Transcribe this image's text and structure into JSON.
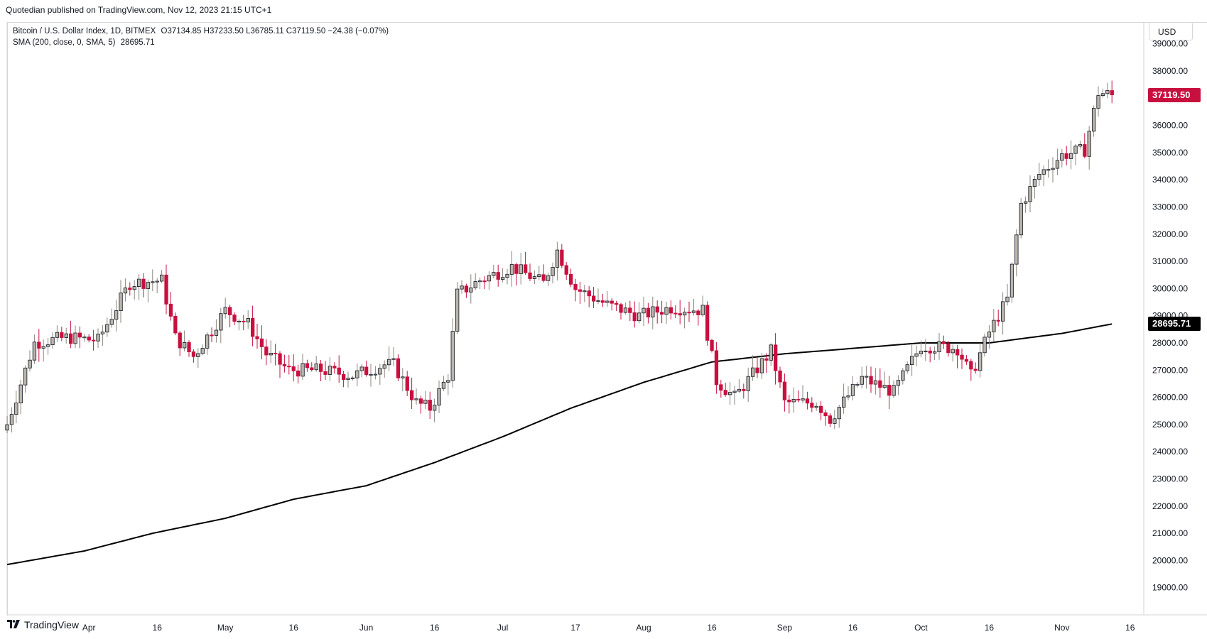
{
  "header": {
    "published_text": "Quotedian published on TradingView.com, Nov 12, 2023 21:15 UTC+1"
  },
  "legend": {
    "symbol": "Bitcoin / U.S. Dollar Index, 1D, BITMEX",
    "ohlc": "O37134.85 H37233.50 L36785.11 C37119.50 −24.38 (−0.07%)",
    "indicator": "SMA (200, close, 0, SMA, 5)",
    "indicator_value": "28695.71"
  },
  "currency_button": "USD",
  "price_labels": {
    "last_price": "37119.50",
    "sma_price": "28695.71"
  },
  "brand": "TradingView",
  "colors": {
    "up": "#b9b5ac",
    "down": "#c8103f",
    "outline": "#131722",
    "sma": "#000000",
    "last_price_bg": "#c8103f",
    "sma_label_bg": "#000000"
  },
  "chart_data": {
    "type": "candlestick",
    "title": "Bitcoin / U.S. Dollar Index, 1D, BITMEX",
    "ylim": [
      18000,
      39800
    ],
    "y_ticks": [
      19000,
      20000,
      21000,
      22000,
      23000,
      24000,
      25000,
      26000,
      27000,
      28000,
      29000,
      30000,
      31000,
      32000,
      33000,
      34000,
      35000,
      36000,
      37000,
      38000,
      39000
    ],
    "y_tick_labels": [
      "19000.00",
      "20000.00",
      "21000.00",
      "22000.00",
      "23000.00",
      "24000.00",
      "25000.00",
      "26000.00",
      "27000.00",
      "28000.00",
      "29000.00",
      "30000.00",
      "31000.00",
      "32000.00",
      "33000.00",
      "34000.00",
      "35000.00",
      "36000.00",
      "37000.00",
      "38000.00",
      "39000.00"
    ],
    "x_range": [
      "2023-03-14",
      "2023-11-19"
    ],
    "x_ticks": [
      {
        "date": "2023-04-01",
        "label": "Apr"
      },
      {
        "date": "2023-04-16",
        "label": "16"
      },
      {
        "date": "2023-05-01",
        "label": "May"
      },
      {
        "date": "2023-05-16",
        "label": "16"
      },
      {
        "date": "2023-06-01",
        "label": "Jun"
      },
      {
        "date": "2023-06-16",
        "label": "16"
      },
      {
        "date": "2023-07-01",
        "label": "Jul"
      },
      {
        "date": "2023-07-17",
        "label": "17"
      },
      {
        "date": "2023-08-01",
        "label": "Aug"
      },
      {
        "date": "2023-08-16",
        "label": "16"
      },
      {
        "date": "2023-09-01",
        "label": "Sep"
      },
      {
        "date": "2023-09-16",
        "label": "16"
      },
      {
        "date": "2023-10-01",
        "label": "Oct"
      },
      {
        "date": "2023-10-16",
        "label": "16"
      },
      {
        "date": "2023-11-01",
        "label": "Nov"
      },
      {
        "date": "2023-11-16",
        "label": "16"
      }
    ],
    "close_series": [
      [
        "2023-03-14",
        25000
      ],
      [
        "2023-03-20",
        28000
      ],
      [
        "2023-03-27",
        28200
      ],
      [
        "2023-04-03",
        28100
      ],
      [
        "2023-04-10",
        30200
      ],
      [
        "2023-04-17",
        30300
      ],
      [
        "2023-04-20",
        28200
      ],
      [
        "2023-04-24",
        27500
      ],
      [
        "2023-05-01",
        29200
      ],
      [
        "2023-05-06",
        28700
      ],
      [
        "2023-05-10",
        27600
      ],
      [
        "2023-05-15",
        27000
      ],
      [
        "2023-05-22",
        27000
      ],
      [
        "2023-05-29",
        26800
      ],
      [
        "2023-06-05",
        27200
      ],
      [
        "2023-06-07",
        27200
      ],
      [
        "2023-06-12",
        25800
      ],
      [
        "2023-06-15",
        25600
      ],
      [
        "2023-06-19",
        26800
      ],
      [
        "2023-06-21",
        29800
      ],
      [
        "2023-06-26",
        30300
      ],
      [
        "2023-07-03",
        30800
      ],
      [
        "2023-07-10",
        30200
      ],
      [
        "2023-07-13",
        31400
      ],
      [
        "2023-07-17",
        30000
      ],
      [
        "2023-07-24",
        29400
      ],
      [
        "2023-07-31",
        29000
      ],
      [
        "2023-08-07",
        29300
      ],
      [
        "2023-08-14",
        29200
      ],
      [
        "2023-08-17",
        26600
      ],
      [
        "2023-08-21",
        26000
      ],
      [
        "2023-08-29",
        27700
      ],
      [
        "2023-09-01",
        25800
      ],
      [
        "2023-09-08",
        25800
      ],
      [
        "2023-09-11",
        25200
      ],
      [
        "2023-09-18",
        26700
      ],
      [
        "2023-09-25",
        26200
      ],
      [
        "2023-10-01",
        27900
      ],
      [
        "2023-10-09",
        27800
      ],
      [
        "2023-10-12",
        26800
      ],
      [
        "2023-10-16",
        28400
      ],
      [
        "2023-10-20",
        29600
      ],
      [
        "2023-10-23",
        33100
      ],
      [
        "2023-10-27",
        34200
      ],
      [
        "2023-11-01",
        34900
      ],
      [
        "2023-11-06",
        35100
      ],
      [
        "2023-11-09",
        37200
      ],
      [
        "2023-11-12",
        37119.5
      ]
    ],
    "sma_200_series": [
      [
        "2023-03-14",
        19850
      ],
      [
        "2023-03-31",
        20350
      ],
      [
        "2023-04-15",
        21000
      ],
      [
        "2023-05-01",
        21550
      ],
      [
        "2023-05-16",
        22250
      ],
      [
        "2023-06-01",
        22750
      ],
      [
        "2023-06-16",
        23600
      ],
      [
        "2023-07-01",
        24550
      ],
      [
        "2023-07-16",
        25600
      ],
      [
        "2023-08-01",
        26550
      ],
      [
        "2023-08-16",
        27300
      ],
      [
        "2023-09-01",
        27600
      ],
      [
        "2023-09-16",
        27800
      ],
      [
        "2023-10-01",
        28000
      ],
      [
        "2023-10-16",
        28000
      ],
      [
        "2023-11-01",
        28350
      ],
      [
        "2023-11-12",
        28695.71
      ]
    ],
    "last_price": 37119.5,
    "sma_last": 28695.71,
    "grid": false
  }
}
